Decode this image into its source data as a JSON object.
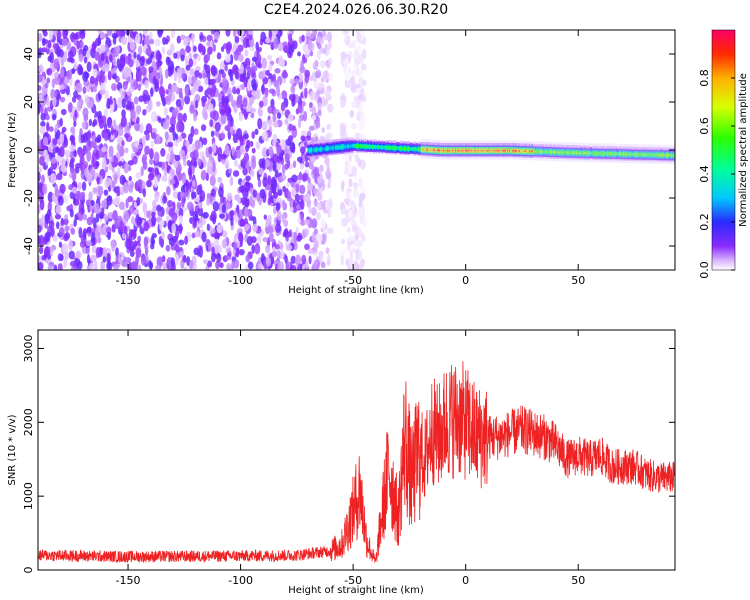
{
  "title": "C2E4.2024.026.06.30.R20",
  "chart_data": [
    {
      "type": "heatmap",
      "xlabel": "Height of straight line (km)",
      "ylabel": "Frequency (Hz)",
      "xlim": [
        -190,
        93
      ],
      "ylim": [
        -50,
        50
      ],
      "x_ticks": [
        -150,
        -100,
        -50,
        0,
        50
      ],
      "y_ticks": [
        -40,
        -20,
        0,
        20,
        40
      ],
      "colorbar": {
        "label": "Normalized spectral amplitude",
        "range": [
          0,
          1
        ],
        "ticks": [
          "0.0",
          "0.2",
          "0.4",
          "0.6",
          "0.8"
        ],
        "colormap": "gist_rainbow_r"
      },
      "signal_band": {
        "description_free": true,
        "centers_hz": [
          [
            -70,
            0
          ],
          [
            -50,
            2
          ],
          [
            -30,
            1
          ],
          [
            -10,
            0
          ],
          [
            20,
            0
          ],
          [
            50,
            -1
          ],
          [
            93,
            -2
          ]
        ],
        "peak_amplitude": 0.98
      }
    },
    {
      "type": "line",
      "xlabel": "Height of straight line (km)",
      "ylabel": "SNR (10 * v/v)",
      "xlim": [
        -190,
        93
      ],
      "ylim": [
        0,
        3250
      ],
      "x_ticks": [
        -150,
        -100,
        -50,
        0,
        50
      ],
      "y_ticks": [
        0,
        1000,
        2000,
        3000
      ],
      "color": "#ee2222",
      "series": [
        {
          "x": [
            -190,
            -150,
            -100,
            -75,
            -60,
            -55,
            -50,
            -47,
            -44,
            -40,
            -37,
            -34,
            -30,
            -27,
            -24,
            -21,
            -18,
            -15,
            -12,
            -9,
            -6,
            -3,
            0,
            5,
            10,
            15,
            20,
            25,
            30,
            35,
            40,
            45,
            50,
            55,
            60,
            65,
            70,
            75,
            80,
            85,
            93
          ],
          "y": [
            200,
            180,
            190,
            200,
            260,
            350,
            800,
            1100,
            400,
            100,
            800,
            1400,
            700,
            1800,
            1200,
            1600,
            1500,
            1900,
            1800,
            2000,
            2050,
            2050,
            2000,
            1800,
            1800,
            1800,
            1850,
            1900,
            1850,
            1800,
            1700,
            1500,
            1550,
            1500,
            1550,
            1400,
            1400,
            1400,
            1300,
            1250,
            1250
          ]
        }
      ]
    }
  ]
}
